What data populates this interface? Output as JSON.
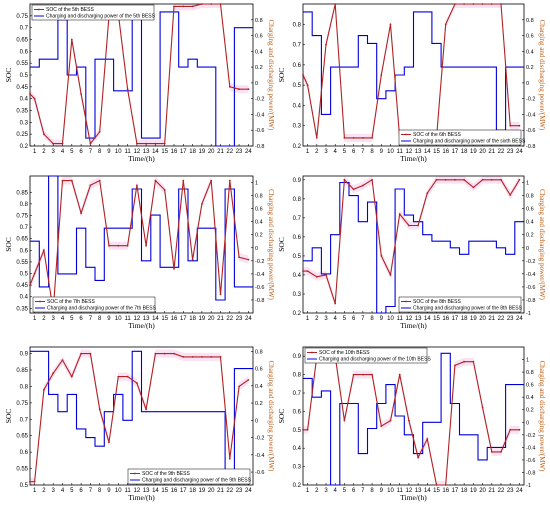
{
  "colors": {
    "soc": "#b22222",
    "power": "#0000dd",
    "right_axis": "#c0601a",
    "band": "#f6c9ea"
  },
  "chart_data": [
    {
      "type": "line",
      "legend": [
        "SOC of the 5th BESS",
        "Charging and discharging power of the 5th BESS"
      ],
      "legend_position": "top-left",
      "xlabel": "Time/(h)",
      "ylabel": "SOC",
      "y2label": "Charging and discharging power/(MW)",
      "x_ticks": [
        "1",
        "2",
        "3",
        "4",
        "5",
        "6",
        "7",
        "8",
        "9",
        "10",
        "11",
        "12",
        "13",
        "14",
        "15",
        "16",
        "17",
        "18",
        "19",
        "20",
        "21",
        "22",
        "23",
        "24"
      ],
      "ylim": [
        0.2,
        0.8
      ],
      "y_ticks": [
        "0.2",
        "0.25",
        "0.3",
        "0.35",
        "0.4",
        "0.45",
        "0.5",
        "0.55",
        "0.6",
        "0.65",
        "0.7",
        "0.75"
      ],
      "y2lim": [
        -0.8,
        1.0
      ],
      "y2_ticks": [
        "-0.8",
        "-0.6",
        "-0.4",
        "-0.2",
        "0",
        "0.2",
        "0.4",
        "0.6",
        "0.8"
      ],
      "series": [
        {
          "name": "SOC of the 5th BESS",
          "type": "line",
          "x": [
            0.5,
            1,
            2,
            3,
            4,
            5,
            6,
            7,
            8,
            9,
            10,
            11,
            12,
            13,
            14,
            15,
            16,
            17,
            18,
            19,
            20,
            21,
            22,
            23,
            24
          ],
          "values": [
            0.42,
            0.4,
            0.25,
            0.21,
            0.21,
            0.65,
            0.42,
            0.21,
            0.26,
            0.75,
            0.76,
            0.44,
            0.21,
            0.21,
            0.21,
            0.21,
            0.79,
            0.79,
            0.79,
            0.8,
            0.8,
            0.8,
            0.45,
            0.44,
            0.44
          ]
        },
        {
          "name": "Charging and discharging power of the 5th BESS",
          "type": "step",
          "values": [
            0.2,
            0.3,
            0.3,
            0.8,
            0.1,
            0.2,
            -0.7,
            0.3,
            0.3,
            -0.1,
            -0.1,
            0.9,
            -0.7,
            -0.7,
            0.9,
            0.9,
            0.2,
            0.3,
            0.2,
            0.2,
            -0.9,
            -0.9,
            0.7,
            0.7
          ]
        }
      ]
    },
    {
      "type": "line",
      "legend": [
        "SOC of the 6th BESS",
        "Charging and discharging power of the sixth BESS"
      ],
      "legend_position": "bottom-right",
      "xlabel": "Time/(h)",
      "ylabel": "SOC",
      "y2label": "Charging and discharging power/(MW)",
      "x_ticks": [
        "1",
        "2",
        "3",
        "4",
        "5",
        "6",
        "7",
        "8",
        "9",
        "10",
        "11",
        "12",
        "13",
        "14",
        "15",
        "16",
        "17",
        "18",
        "19",
        "20",
        "21",
        "22",
        "23",
        "24"
      ],
      "ylim": [
        0.2,
        0.9
      ],
      "y_ticks": [
        "0.2",
        "0.3",
        "0.4",
        "0.5",
        "0.6",
        "0.7",
        "0.8"
      ],
      "y2lim": [
        -0.8,
        1.0
      ],
      "y2_ticks": [
        "-0.8",
        "-0.6",
        "-0.4",
        "-0.2",
        "0",
        "0.2",
        "0.4",
        "0.6",
        "0.8"
      ],
      "series": [
        {
          "name": "SOC of the 6th BESS",
          "type": "line",
          "x": [
            0.5,
            1,
            2,
            3,
            4,
            5,
            6,
            7,
            8,
            9,
            10,
            11,
            12,
            13,
            14,
            15,
            16,
            17,
            18,
            19,
            20,
            21,
            22,
            23,
            24
          ],
          "values": [
            0.55,
            0.5,
            0.24,
            0.7,
            0.9,
            0.24,
            0.24,
            0.24,
            0.24,
            0.55,
            0.8,
            0.24,
            0.24,
            0.24,
            0.24,
            0.24,
            0.8,
            0.9,
            0.9,
            0.9,
            0.9,
            0.9,
            0.9,
            0.3,
            0.3
          ]
        },
        {
          "name": "Charging and discharging power of the sixth BESS",
          "type": "step",
          "values": [
            0.9,
            0.6,
            -0.4,
            0.2,
            0.2,
            0.2,
            0.6,
            0.5,
            -0.2,
            -0.1,
            0.1,
            0.2,
            0.9,
            0.9,
            0.5,
            0.2,
            0.2,
            0.2,
            0.2,
            0.2,
            0.2,
            -0.6,
            0.2,
            0.2
          ]
        }
      ]
    },
    {
      "type": "line",
      "legend": [
        "SOC of the 7th BESS",
        "Charging and discharging power of the 7th BESS"
      ],
      "legend_position": "bottom-left",
      "xlabel": "Time/(h)",
      "ylabel": "SOC",
      "y2label": "Charging and discharging power/(MW)",
      "x_ticks": [
        "1",
        "2",
        "3",
        "4",
        "5",
        "6",
        "7",
        "8",
        "9",
        "10",
        "11",
        "12",
        "13",
        "14",
        "15",
        "16",
        "17",
        "18",
        "19",
        "20",
        "21",
        "22",
        "23",
        "24"
      ],
      "ylim": [
        0.33,
        0.92
      ],
      "y_ticks": [
        "0.35",
        "0.4",
        "0.45",
        "0.5",
        "0.55",
        "0.6",
        "0.65",
        "0.7",
        "0.75",
        "0.8",
        "0.85"
      ],
      "y2lim": [
        -1.0,
        1.1
      ],
      "y2_ticks": [
        "-0.8",
        "-0.6",
        "-0.4",
        "-0.2",
        "0",
        "0.2",
        "0.4",
        "0.6",
        "0.8",
        "1"
      ],
      "series": [
        {
          "name": "SOC of the 7th BESS",
          "type": "line",
          "x": [
            0.5,
            1,
            2,
            3,
            4,
            5,
            6,
            7,
            8,
            9,
            10,
            11,
            12,
            13,
            14,
            15,
            16,
            17,
            18,
            19,
            20,
            21,
            22,
            23,
            24
          ],
          "values": [
            0.45,
            0.5,
            0.6,
            0.34,
            0.9,
            0.9,
            0.76,
            0.88,
            0.9,
            0.62,
            0.62,
            0.62,
            0.88,
            0.62,
            0.9,
            0.86,
            0.52,
            0.9,
            0.56,
            0.8,
            0.9,
            0.41,
            0.9,
            0.57,
            0.56
          ]
        },
        {
          "name": "Charging and discharging power of the 7th BESS",
          "type": "step",
          "values": [
            0.1,
            -0.6,
            1.1,
            -0.4,
            -0.4,
            0.3,
            -0.3,
            -0.5,
            0.3,
            0.3,
            0.3,
            0.9,
            -0.2,
            0.5,
            -0.3,
            -0.3,
            0.9,
            -0.2,
            0.3,
            0.3,
            -0.8,
            0.9,
            -0.6,
            -0.6
          ]
        }
      ]
    },
    {
      "type": "line",
      "legend": [
        "SOC of the 8th BESS",
        "Charging and discharging power of the 8th BESS"
      ],
      "legend_position": "bottom-right",
      "xlabel": "Time/(h)",
      "ylabel": "SOC",
      "y2label": "Charging and discharging power/(MW)",
      "x_ticks": [
        "1",
        "2",
        "3",
        "4",
        "5",
        "6",
        "7",
        "8",
        "9",
        "10",
        "11",
        "12",
        "13",
        "14",
        "15",
        "16",
        "17",
        "18",
        "19",
        "20",
        "21",
        "22",
        "23",
        "24"
      ],
      "ylim": [
        0.2,
        0.92
      ],
      "y_ticks": [
        "0.2",
        "0.3",
        "0.4",
        "0.5",
        "0.6",
        "0.7",
        "0.8",
        "0.9"
      ],
      "y2lim": [
        -1.0,
        1.1
      ],
      "y2_ticks": [
        "-1",
        "-0.8",
        "-0.6",
        "-0.4",
        "-0.2",
        "0",
        "0.2",
        "0.4",
        "0.6",
        "0.8",
        "1"
      ],
      "series": [
        {
          "name": "SOC of the 8th BESS",
          "type": "line",
          "x": [
            0.5,
            1,
            2,
            3,
            4,
            5,
            6,
            7,
            8,
            9,
            10,
            11,
            12,
            13,
            14,
            15,
            16,
            17,
            18,
            19,
            20,
            21,
            22,
            23,
            24
          ],
          "values": [
            0.42,
            0.42,
            0.39,
            0.4,
            0.25,
            0.9,
            0.85,
            0.87,
            0.9,
            0.5,
            0.4,
            0.72,
            0.66,
            0.66,
            0.83,
            0.9,
            0.9,
            0.9,
            0.9,
            0.86,
            0.9,
            0.9,
            0.9,
            0.82,
            0.9
          ]
        },
        {
          "name": "Charging and discharging power of the 8th BESS",
          "type": "step",
          "values": [
            -0.2,
            0.0,
            -0.4,
            0.2,
            1.0,
            0.8,
            0.4,
            0.7,
            -1.0,
            -0.9,
            0.9,
            0.5,
            0.4,
            0.2,
            0.1,
            0.1,
            0.0,
            -0.1,
            0.1,
            0.1,
            0.1,
            0.0,
            -0.1,
            0.4
          ]
        }
      ]
    },
    {
      "type": "line",
      "legend": [
        "SOC of the 9th BESS",
        "Charging and discharging power of the 9th BESS"
      ],
      "legend_position": "bottom-right",
      "xlabel": "Time/(h)",
      "ylabel": "SOC",
      "y2label": "Charging and discharging power/(MW)",
      "x_ticks": [
        "1",
        "2",
        "3",
        "4",
        "5",
        "6",
        "7",
        "8",
        "9",
        "10",
        "11",
        "12",
        "13",
        "14",
        "15",
        "16",
        "17",
        "18",
        "19",
        "20",
        "21",
        "22",
        "23",
        "24"
      ],
      "ylim": [
        0.5,
        0.92
      ],
      "y_ticks": [
        "0.5",
        "0.55",
        "0.6",
        "0.65",
        "0.7",
        "0.75",
        "0.8",
        "0.85",
        "0.9"
      ],
      "y2lim": [
        -0.75,
        0.85
      ],
      "y2_ticks": [
        "-0.6",
        "-0.4",
        "-0.2",
        "0",
        "0.2",
        "0.4",
        "0.6",
        "0.8"
      ],
      "series": [
        {
          "name": "SOC of the 9th BESS",
          "type": "line",
          "x": [
            0.5,
            1,
            2,
            3,
            4,
            5,
            6,
            7,
            8,
            9,
            10,
            11,
            12,
            13,
            14,
            15,
            16,
            17,
            18,
            19,
            20,
            21,
            22,
            23,
            24
          ],
          "values": [
            0.51,
            0.51,
            0.79,
            0.84,
            0.88,
            0.83,
            0.9,
            0.9,
            0.73,
            0.63,
            0.83,
            0.83,
            0.81,
            0.73,
            0.9,
            0.9,
            0.9,
            0.89,
            0.89,
            0.89,
            0.89,
            0.89,
            0.58,
            0.8,
            0.82
          ]
        },
        {
          "name": "Charging and discharging power of the 9th BESS",
          "type": "step",
          "values": [
            0.8,
            0.8,
            0.3,
            0.1,
            0.3,
            -0.1,
            -0.2,
            -0.3,
            0.1,
            0.3,
            0.0,
            0.8,
            0.1,
            0.1,
            0.1,
            0.1,
            0.1,
            0.1,
            0.1,
            0.1,
            0.1,
            -0.6,
            0.6,
            0.6
          ]
        }
      ]
    },
    {
      "type": "line",
      "legend": [
        "SOC of the 10th BESS",
        "Charging and discharging power of the 10th BESS"
      ],
      "legend_position": "top-left",
      "xlabel": "Time/(h)",
      "ylabel": "SOC",
      "y2label": "Charging and discharging power/(MW)",
      "x_ticks": [
        "1",
        "2",
        "3",
        "4",
        "5",
        "6",
        "7",
        "8",
        "9",
        "10",
        "11",
        "12",
        "13",
        "14",
        "15",
        "16",
        "17",
        "18",
        "19",
        "20",
        "21",
        "22",
        "23",
        "24"
      ],
      "ylim": [
        0.2,
        0.95
      ],
      "y_ticks": [
        "0.2",
        "0.3",
        "0.4",
        "0.5",
        "0.6",
        "0.7",
        "0.8",
        "0.9"
      ],
      "y2lim": [
        -1.0,
        1.2
      ],
      "y2_ticks": [
        "-1",
        "-0.8",
        "-0.6",
        "-0.4",
        "-0.2",
        "0",
        "0.2",
        "0.4",
        "0.6",
        "0.8",
        "1"
      ],
      "series": [
        {
          "name": "SOC of the 10th BESS",
          "type": "line",
          "x": [
            0.5,
            1,
            2,
            3,
            4,
            5,
            6,
            7,
            8,
            9,
            10,
            11,
            12,
            13,
            14,
            15,
            16,
            17,
            18,
            19,
            20,
            21,
            22,
            23,
            24
          ],
          "values": [
            0.5,
            0.5,
            0.9,
            0.9,
            0.9,
            0.55,
            0.8,
            0.8,
            0.8,
            0.52,
            0.55,
            0.8,
            0.55,
            0.35,
            0.45,
            0.2,
            0.2,
            0.85,
            0.87,
            0.87,
            0.62,
            0.38,
            0.38,
            0.5,
            0.5
          ]
        },
        {
          "name": "Charging and discharging power of the 10th BESS",
          "type": "step",
          "values": [
            0.7,
            0.4,
            0.5,
            -1.0,
            0.3,
            0.3,
            -0.5,
            -0.1,
            0.3,
            0.6,
            0.1,
            -0.2,
            -0.5,
            0.0,
            0.0,
            1.1,
            0.3,
            -0.2,
            -0.2,
            -0.6,
            -0.4,
            -0.4,
            0.6,
            0.6
          ]
        }
      ]
    }
  ]
}
